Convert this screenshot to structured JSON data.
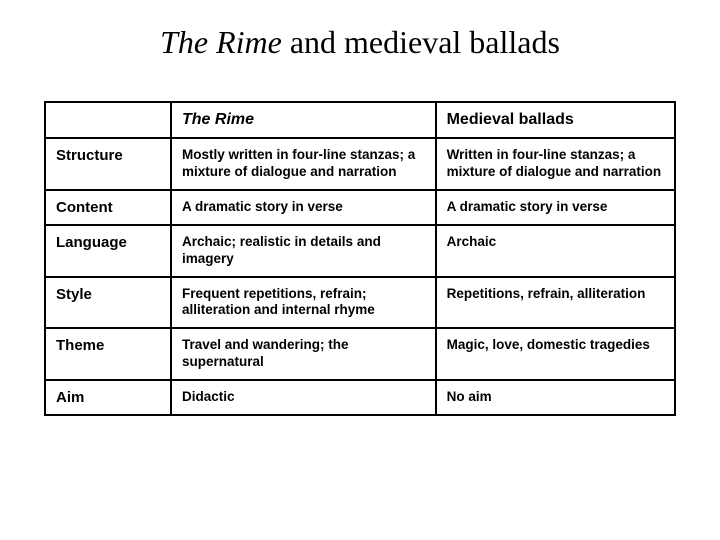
{
  "title_italic": "The Rime",
  "title_rest": " and medieval ballads",
  "table": {
    "header_col1_italic": "The Rime",
    "header_col2": "Medieval ballads",
    "rows": [
      {
        "label": "Structure",
        "col1": "Mostly written in four-line stanzas; a mixture of dialogue and narration",
        "col2": "Written in four-line stanzas; a mixture of dialogue and narration"
      },
      {
        "label": "Content",
        "col1": "A dramatic story in verse",
        "col2": "A dramatic story in verse"
      },
      {
        "label": "Language",
        "col1": "Archaic; realistic in details and imagery",
        "col2": "Archaic"
      },
      {
        "label": "Style",
        "col1": "Frequent repetitions, refrain; alliteration and internal rhyme",
        "col2": "Repetitions, refrain, alliteration"
      },
      {
        "label": "Theme",
        "col1": "Travel and wandering; the supernatural",
        "col2": "Magic, love, domestic tragedies"
      },
      {
        "label": "Aim",
        "col1": "Didactic",
        "col2": "No aim"
      }
    ]
  },
  "style": {
    "background_color": "#ffffff",
    "border_color": "#000000",
    "title_fontsize": 32,
    "header_fontsize": 16,
    "rowlabel_fontsize": 15,
    "cell_fontsize": 13.5,
    "col_widths_pct": [
      20,
      42,
      38
    ]
  }
}
